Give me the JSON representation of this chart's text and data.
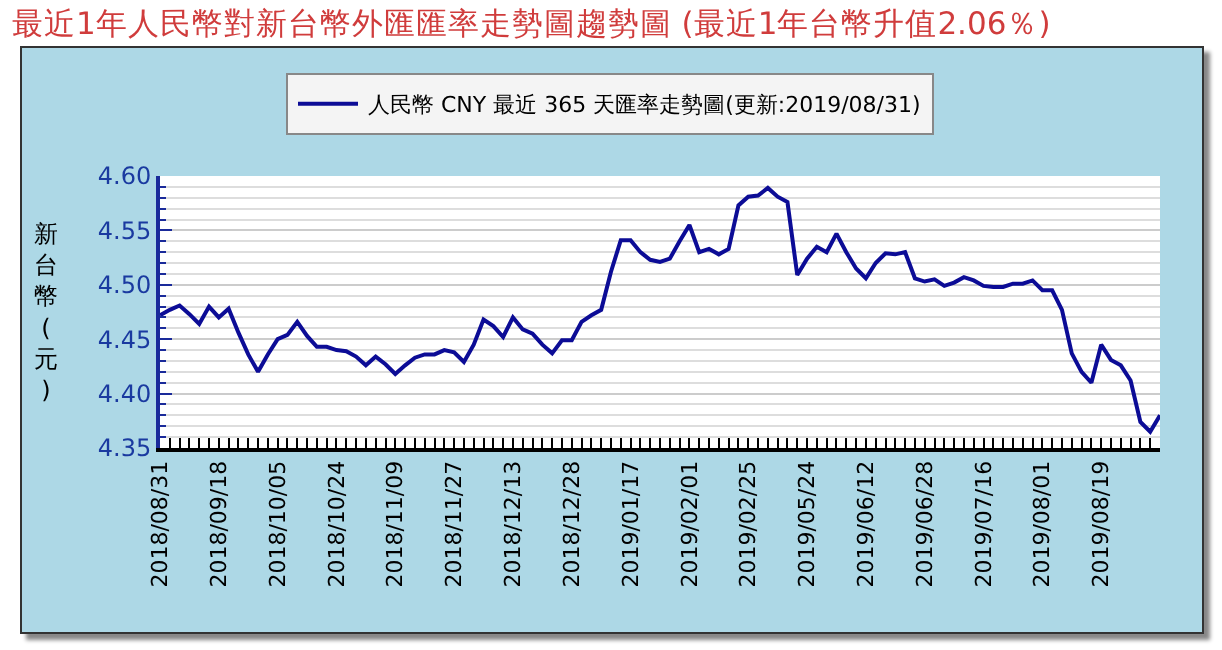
{
  "chart_data": {
    "type": "line",
    "title": "最近1年人民幣對新台幣外匯匯率走勢圖趨勢圖 (最近1年台幣升值2.06％)",
    "ylabel": "新台幣(元)",
    "categories": [
      "2018/08/31",
      null,
      null,
      null,
      null,
      null,
      "2018/09/18",
      null,
      null,
      null,
      null,
      null,
      "2018/10/05",
      null,
      null,
      null,
      null,
      null,
      "2018/10/24",
      null,
      null,
      null,
      null,
      null,
      "2018/11/09",
      null,
      null,
      null,
      null,
      null,
      "2018/11/27",
      null,
      null,
      null,
      null,
      null,
      "2018/12/13",
      null,
      null,
      null,
      null,
      null,
      "2018/12/28",
      null,
      null,
      null,
      null,
      null,
      "2019/01/17",
      null,
      null,
      null,
      null,
      null,
      "2019/02/01",
      null,
      null,
      null,
      null,
      null,
      "2019/02/25",
      null,
      null,
      null,
      null,
      null,
      "2019/05/24",
      null,
      null,
      null,
      null,
      null,
      "2019/06/12",
      null,
      null,
      null,
      null,
      null,
      "2019/06/28",
      null,
      null,
      null,
      null,
      null,
      "2019/07/16",
      null,
      null,
      null,
      null,
      null,
      "2019/08/01",
      null,
      null,
      null,
      null,
      null,
      "2019/08/19",
      null,
      null,
      null,
      null,
      null,
      null
    ],
    "series": [
      {
        "name": "人民幣 CNY 最近 365 天匯率走勢圖(更新:2019/08/31)",
        "color": "#0c0c96",
        "values": [
          4.472,
          4.477,
          4.481,
          4.473,
          4.464,
          4.48,
          4.47,
          4.478,
          4.456,
          4.436,
          4.42,
          4.436,
          4.45,
          4.454,
          4.466,
          4.453,
          4.443,
          4.443,
          4.44,
          4.439,
          4.434,
          4.426,
          4.434,
          4.427,
          4.418,
          4.426,
          4.433,
          4.436,
          4.436,
          4.44,
          4.438,
          4.429,
          4.445,
          4.468,
          4.462,
          4.452,
          4.47,
          4.459,
          4.455,
          4.445,
          4.437,
          4.449,
          4.449,
          4.466,
          4.472,
          4.477,
          4.512,
          4.541,
          4.541,
          4.53,
          4.523,
          4.521,
          4.524,
          4.54,
          4.555,
          4.53,
          4.533,
          4.528,
          4.533,
          4.573,
          4.581,
          4.582,
          4.589,
          4.581,
          4.576,
          4.509,
          4.524,
          4.535,
          4.53,
          4.547,
          4.53,
          4.515,
          4.506,
          4.52,
          4.529,
          4.528,
          4.53,
          4.506,
          4.503,
          4.505,
          4.499,
          4.502,
          4.507,
          4.504,
          4.499,
          4.498,
          4.498,
          4.501,
          4.501,
          4.504,
          4.495,
          4.495,
          4.477,
          4.437,
          4.42,
          4.41,
          4.445,
          4.431,
          4.426,
          4.412,
          4.374,
          4.365,
          4.38
        ]
      }
    ],
    "ylim": [
      4.35,
      4.6
    ],
    "yticks": [
      4.35,
      {
        "value": 4.4,
        "label": "4.40"
      },
      4.45,
      {
        "value": 4.5,
        "label": "4.50"
      },
      4.55,
      {
        "value": 4.6,
        "label": "4.60"
      }
    ],
    "grid": "y",
    "legend": "top",
    "marker": "none",
    "line_style": "solid"
  }
}
